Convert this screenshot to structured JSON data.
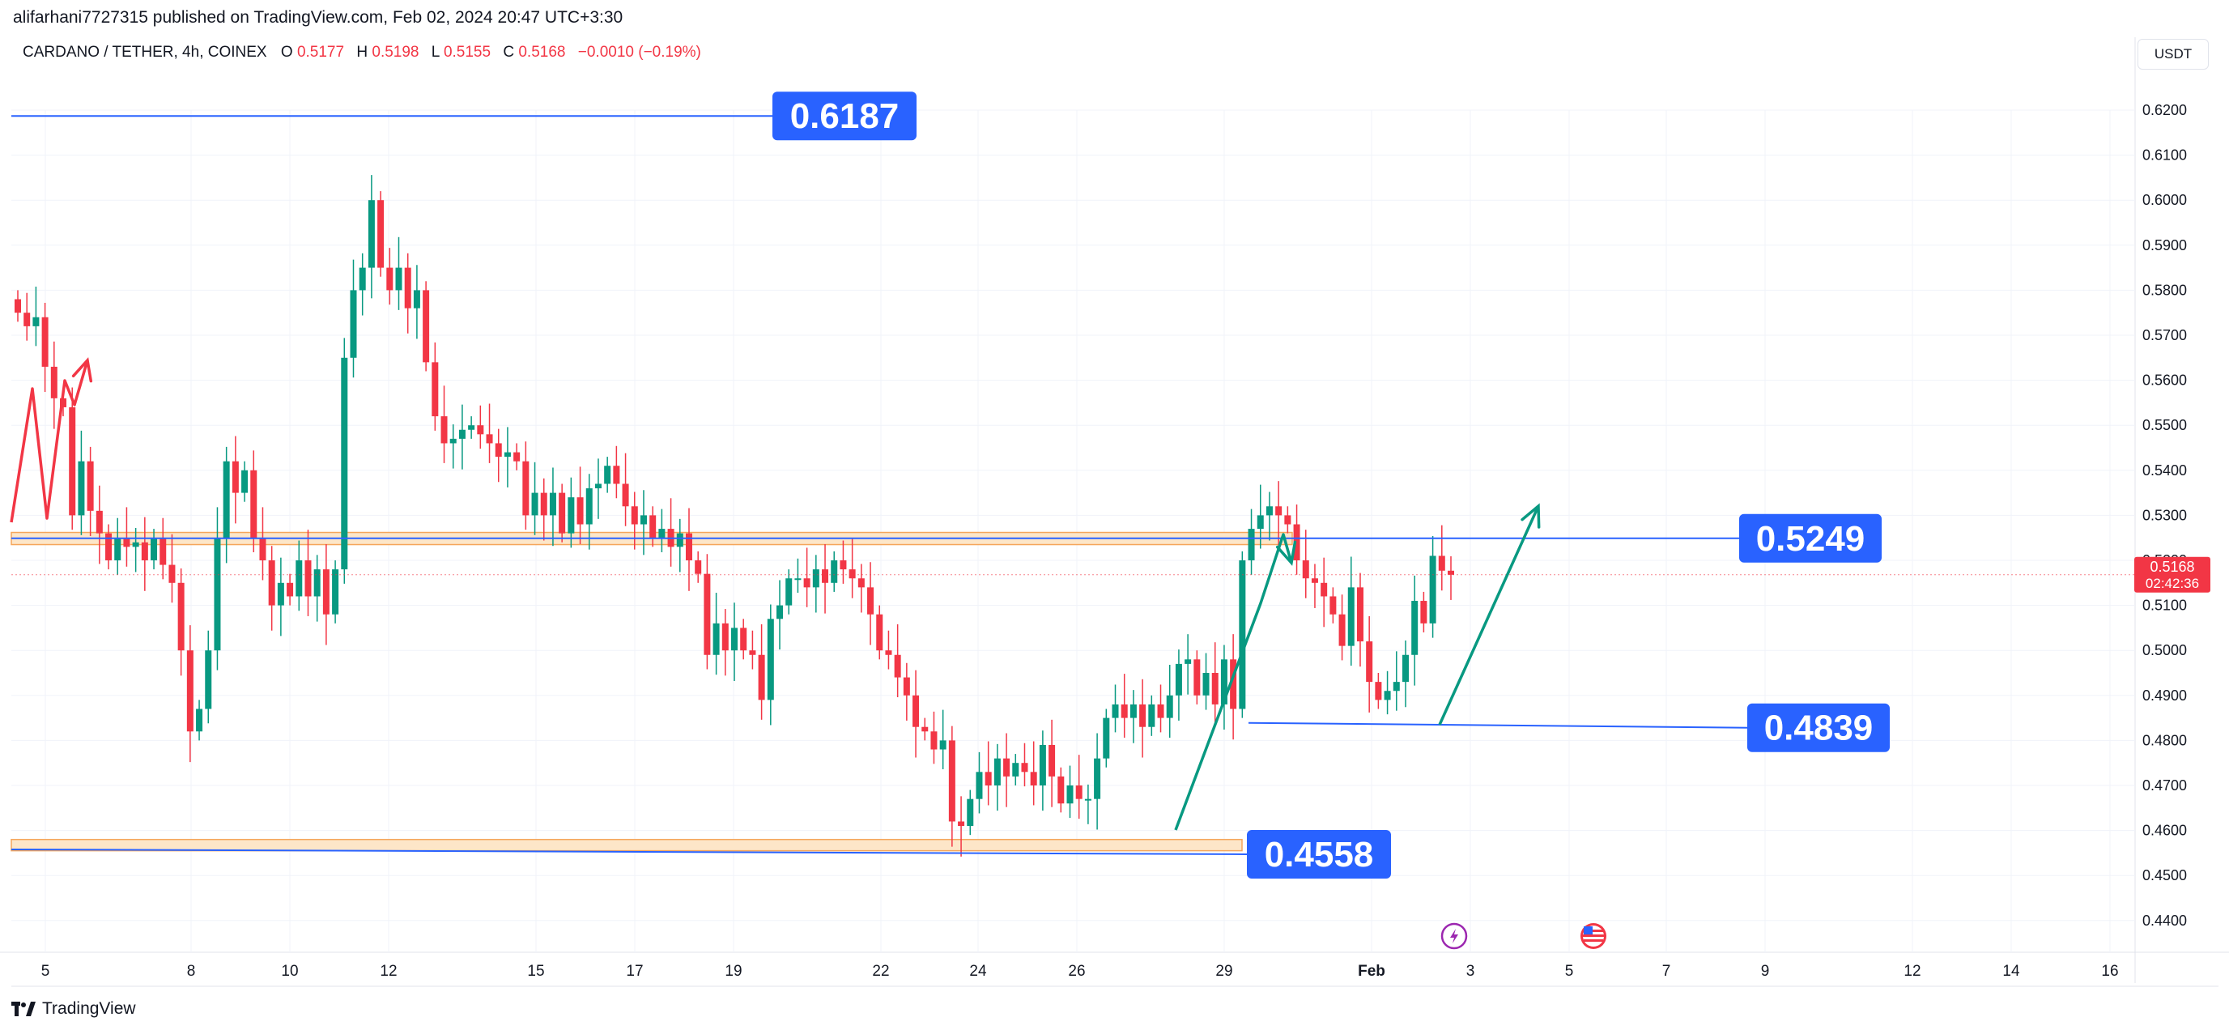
{
  "header": {
    "published_line": "alifarhani7727315 published on TradingView.com, Feb 02, 2024 20:47 UTC+3:30"
  },
  "symbol_bar": {
    "name": "CARDANO / TETHER, 4h, COINEX",
    "o_label": "O",
    "o_value": "0.5177",
    "h_label": "H",
    "h_value": "0.5198",
    "l_label": "L",
    "l_value": "0.5155",
    "c_label": "C",
    "c_value": "0.5168",
    "change": "−0.0010 (−0.19%)"
  },
  "currency_button": "USDT",
  "footer": {
    "brand": "TradingView"
  },
  "colors": {
    "up": "#089981",
    "down": "#f23645",
    "level_line": "#2962ff",
    "zone_fill": "#fde6c8",
    "zone_border": "#f5a65b",
    "arrow_green": "#089981",
    "arrow_red": "#f23645"
  },
  "chart_data": {
    "type": "candlestick",
    "symbol": "CARDANO / TETHER",
    "timeframe": "4h",
    "exchange": "COINEX",
    "ylim": [
      0.436,
      0.626
    ],
    "y_ticks": [
      "0.6200",
      "0.6100",
      "0.6000",
      "0.5900",
      "0.5800",
      "0.5700",
      "0.5600",
      "0.5500",
      "0.5400",
      "0.5300",
      "0.5200",
      "0.5100",
      "0.5000",
      "0.4900",
      "0.4800",
      "0.4700",
      "0.4600",
      "0.4500",
      "0.4400"
    ],
    "x_ticks": [
      "5",
      "8",
      "10",
      "12",
      "15",
      "17",
      "19",
      "22",
      "24",
      "26",
      "29",
      "Feb",
      "3",
      "5",
      "7",
      "9",
      "12",
      "14",
      "16"
    ],
    "current_price": {
      "value": "0.5168",
      "countdown": "02:42:36"
    },
    "levels": [
      {
        "label": "0.6187",
        "value": 0.6187
      },
      {
        "label": "0.5249",
        "value": 0.5249
      },
      {
        "label": "0.4839",
        "value": 0.4839
      },
      {
        "label": "0.4558",
        "value": 0.4558
      }
    ],
    "zones": [
      {
        "from": 0.5235,
        "to": 0.5262
      },
      {
        "from": 0.4555,
        "to": 0.458
      }
    ],
    "close_series": [
      0.575,
      0.572,
      0.574,
      0.563,
      0.556,
      0.554,
      0.53,
      0.542,
      0.531,
      0.526,
      0.52,
      0.525,
      0.523,
      0.524,
      0.52,
      0.525,
      0.519,
      0.515,
      0.5,
      0.482,
      0.487,
      0.5,
      0.525,
      0.542,
      0.535,
      0.54,
      0.525,
      0.52,
      0.51,
      0.515,
      0.512,
      0.52,
      0.512,
      0.518,
      0.508,
      0.518,
      0.565,
      0.58,
      0.585,
      0.6,
      0.585,
      0.58,
      0.585,
      0.576,
      0.58,
      0.564,
      0.552,
      0.546,
      0.547,
      0.549,
      0.55,
      0.548,
      0.546,
      0.543,
      0.544,
      0.542,
      0.53,
      0.535,
      0.53,
      0.535,
      0.526,
      0.534,
      0.528,
      0.536,
      0.537,
      0.541,
      0.537,
      0.532,
      0.528,
      0.53,
      0.525,
      0.527,
      0.523,
      0.526,
      0.52,
      0.517,
      0.499,
      0.506,
      0.5,
      0.505,
      0.5,
      0.499,
      0.489,
      0.507,
      0.51,
      0.516,
      0.516,
      0.514,
      0.518,
      0.515,
      0.52,
      0.518,
      0.516,
      0.514,
      0.508,
      0.5,
      0.499,
      0.494,
      0.49,
      0.483,
      0.482,
      0.478,
      0.48,
      0.462,
      0.461,
      0.467,
      0.473,
      0.47,
      0.476,
      0.472,
      0.475,
      0.473,
      0.47,
      0.479,
      0.472,
      0.466,
      0.47,
      0.467,
      0.467,
      0.476,
      0.485,
      0.488,
      0.485,
      0.488,
      0.483,
      0.488,
      0.485,
      0.49,
      0.497,
      0.498,
      0.49,
      0.495,
      0.488,
      0.498,
      0.487,
      0.52,
      0.527,
      0.53,
      0.532,
      0.53,
      0.528,
      0.52,
      0.516,
      0.515,
      0.512,
      0.508,
      0.501,
      0.514,
      0.502,
      0.493,
      0.489,
      0.491,
      0.493,
      0.499,
      0.511,
      0.506,
      0.521,
      0.5177,
      0.5168
    ],
    "annotations": [
      {
        "type": "arrow",
        "color": "red",
        "description": "zigzag up arrow at far left"
      },
      {
        "type": "arrow",
        "color": "green",
        "description": "up arrow from 0.4558 zone to 0.5249 zone"
      },
      {
        "type": "arrow",
        "color": "green",
        "description": "up projection arrow from 0.4839 level"
      }
    ]
  }
}
